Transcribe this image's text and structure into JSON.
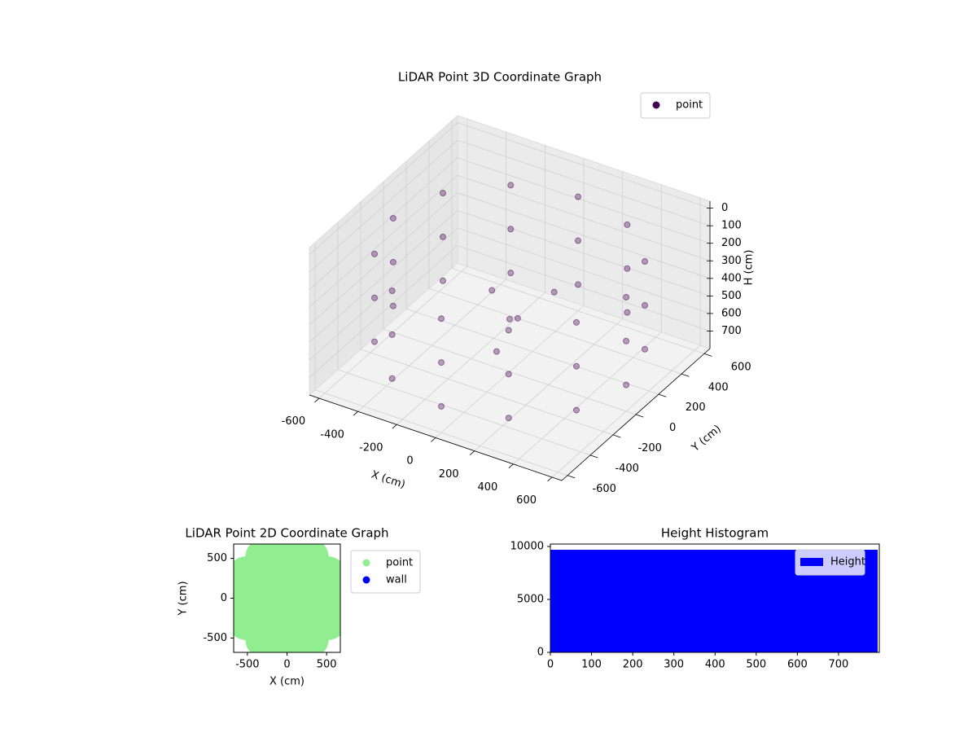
{
  "chart_data": [
    {
      "type": "scatter3d",
      "title": "LiDAR Point 3D Coordinate Graph",
      "xlabel": "X (cm)",
      "ylabel": "Y (cm)",
      "zlabel": "H (cm)",
      "xlim": [
        -650,
        650
      ],
      "ylim": [
        -650,
        650
      ],
      "zlim": [
        800,
        -40
      ],
      "xticks": [
        -600,
        -400,
        -200,
        0,
        200,
        400,
        600
      ],
      "yticks": [
        -600,
        -400,
        -200,
        0,
        200,
        400,
        600
      ],
      "zticks": [
        0,
        100,
        200,
        300,
        400,
        500,
        600,
        700
      ],
      "grid": true,
      "legend": "upper right",
      "series": [
        {
          "name": "point",
          "color": "#440154",
          "x": [
            600,
            520,
            300,
            0,
            -300,
            -520,
            -600,
            -520,
            -300,
            0,
            300,
            520,
            600,
            520,
            300,
            0,
            -300,
            -520,
            -600,
            -520,
            -300,
            0,
            300,
            520,
            600,
            520,
            300,
            0,
            -300,
            -520,
            -600,
            -520,
            -300,
            0,
            300,
            520,
            0,
            100,
            200,
            -150,
            50
          ],
          "y": [
            0,
            300,
            520,
            600,
            520,
            300,
            0,
            -300,
            -520,
            -600,
            -520,
            -300,
            0,
            300,
            520,
            600,
            520,
            300,
            0,
            -300,
            -520,
            -600,
            -520,
            -300,
            0,
            300,
            520,
            600,
            520,
            300,
            0,
            -300,
            -520,
            -600,
            -520,
            -300,
            0,
            -100,
            50,
            100,
            -200
          ],
          "z": [
            150,
            150,
            150,
            150,
            150,
            150,
            150,
            150,
            150,
            150,
            150,
            150,
            400,
            400,
            400,
            400,
            400,
            400,
            400,
            400,
            400,
            400,
            400,
            400,
            650,
            650,
            650,
            650,
            650,
            650,
            650,
            650,
            650,
            650,
            650,
            650,
            500,
            400,
            300,
            450,
            550
          ]
        }
      ]
    },
    {
      "type": "scatter",
      "title": "LiDAR Point 2D Coordinate Graph",
      "xlabel": "X (cm)",
      "ylabel": "Y (cm)",
      "xlim": [
        -673,
        673
      ],
      "ylim": [
        -680,
        680
      ],
      "xticks": [
        -500,
        0,
        500
      ],
      "yticks": [
        -500,
        0,
        500
      ],
      "legend": "outside right",
      "series": [
        {
          "name": "point",
          "color": "#90ee90",
          "x": [
            600,
            520,
            300,
            0,
            -300,
            -520,
            -600,
            -520,
            -300,
            0,
            300,
            520,
            300,
            150,
            -150,
            -300,
            -150,
            150,
            0
          ],
          "y": [
            0,
            300,
            520,
            600,
            520,
            300,
            0,
            -300,
            -520,
            -600,
            -520,
            -300,
            0,
            260,
            260,
            0,
            -260,
            -260,
            0
          ]
        },
        {
          "name": "wall",
          "color": "#0000ff",
          "x": [],
          "y": []
        }
      ]
    },
    {
      "type": "histogram",
      "title": "Height Histogram",
      "bins": [
        0,
        795
      ],
      "values": [
        9690
      ],
      "name": "Height",
      "color": "#0000ff",
      "xlim": [
        0,
        799
      ],
      "ylim": [
        0,
        10230
      ],
      "xticks": [
        0,
        100,
        200,
        300,
        400,
        500,
        600,
        700
      ],
      "yticks": [
        0,
        5000,
        10000
      ],
      "legend": "upper right"
    }
  ]
}
